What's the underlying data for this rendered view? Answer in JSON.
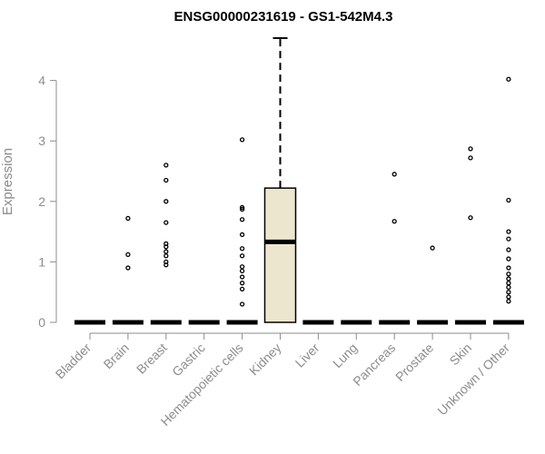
{
  "chart_data": {
    "type": "box",
    "title": "ENSG00000231619 - GS1-542M4.3",
    "xlabel": "",
    "ylabel": "Expression",
    "ylim": [
      0,
      4.7
    ],
    "yticks": [
      "0",
      "1",
      "2",
      "3",
      "4"
    ],
    "categories": [
      "Bladder",
      "Brain",
      "Breast",
      "Gastric",
      "Hematopoietic cells",
      "Kidney",
      "Liver",
      "Lung",
      "Pancreas",
      "Prostate",
      "Skin",
      "Unknown / Other"
    ],
    "series": [
      {
        "min": 0,
        "q1": 0,
        "median": 0,
        "q3": 0,
        "max": 0,
        "outliers": []
      },
      {
        "min": 0,
        "q1": 0,
        "median": 0,
        "q3": 0,
        "max": 0,
        "outliers": [
          0.9,
          1.12,
          1.72
        ]
      },
      {
        "min": 0,
        "q1": 0,
        "median": 0,
        "q3": 0,
        "max": 0,
        "outliers": [
          0.95,
          1.0,
          1.1,
          1.17,
          1.25,
          1.3,
          1.65,
          2.0,
          2.35,
          2.6
        ]
      },
      {
        "min": 0,
        "q1": 0,
        "median": 0,
        "q3": 0,
        "max": 0,
        "outliers": []
      },
      {
        "min": 0,
        "q1": 0,
        "median": 0,
        "q3": 0,
        "max": 0,
        "outliers": [
          0.3,
          0.55,
          0.65,
          0.75,
          0.85,
          0.92,
          1.1,
          1.22,
          1.45,
          1.7,
          1.87,
          1.9,
          3.02
        ]
      },
      {
        "min": 0,
        "q1": 0,
        "median": 1.33,
        "q3": 2.22,
        "max": 4.7,
        "outliers": []
      },
      {
        "min": 0,
        "q1": 0,
        "median": 0,
        "q3": 0,
        "max": 0,
        "outliers": []
      },
      {
        "min": 0,
        "q1": 0,
        "median": 0,
        "q3": 0,
        "max": 0,
        "outliers": []
      },
      {
        "min": 0,
        "q1": 0,
        "median": 0,
        "q3": 0,
        "max": 0,
        "outliers": [
          1.67,
          2.45
        ]
      },
      {
        "min": 0,
        "q1": 0,
        "median": 0,
        "q3": 0,
        "max": 0,
        "outliers": [
          1.23
        ]
      },
      {
        "min": 0,
        "q1": 0,
        "median": 0,
        "q3": 0,
        "max": 0,
        "outliers": [
          1.73,
          2.72,
          2.87
        ]
      },
      {
        "min": 0,
        "q1": 0,
        "median": 0,
        "q3": 0,
        "max": 0,
        "outliers": [
          0.35,
          0.42,
          0.5,
          0.58,
          0.65,
          0.72,
          0.8,
          0.9,
          1.05,
          1.2,
          1.38,
          1.5,
          2.02,
          4.02
        ]
      }
    ],
    "colors": {
      "box_fill": "#ede6cf",
      "box_stroke": "#000000",
      "axis": "#8c8c8c",
      "text": "#8c8c8c"
    },
    "grid": false,
    "legend": "none"
  }
}
